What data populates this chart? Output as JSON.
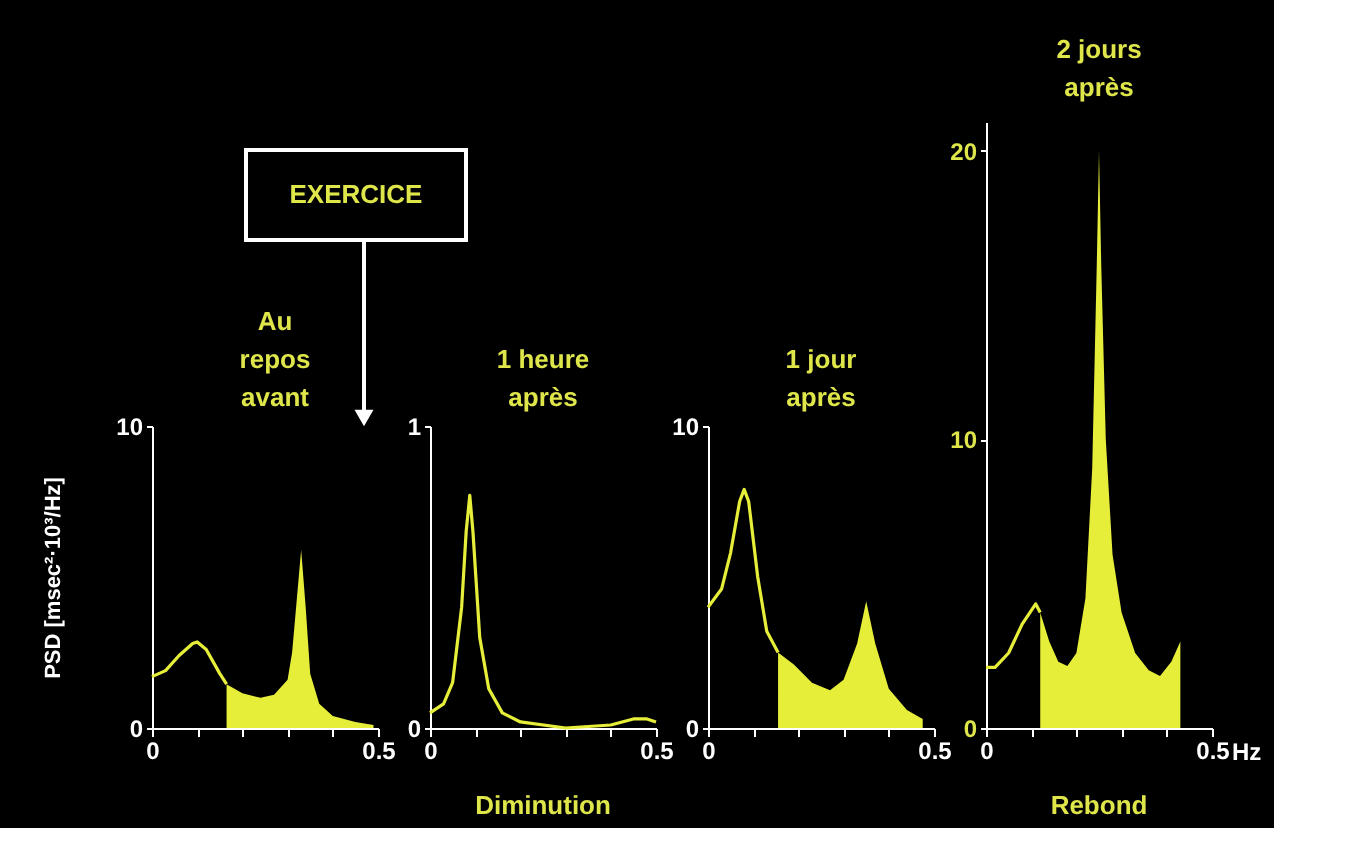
{
  "chart_data": [
    {
      "type": "line",
      "title": "Au repos avant",
      "ylabel": "PSD [msec²·10³/Hz]",
      "annotations": [
        "EXERCICE"
      ],
      "xlim": [
        0,
        0.5
      ],
      "xticks": [
        0,
        {
          "value": 0.1,
          "label": null
        },
        {
          "value": 0.2,
          "label": null
        },
        {
          "value": 0.3,
          "label": null
        },
        {
          "value": 0.4,
          "label": null
        },
        0.5
      ],
      "ylim": [
        0,
        10
      ],
      "yticks": [
        0,
        10
      ],
      "series": [
        {
          "type": "area",
          "color": "#e6ee3a",
          "x": [
            0.165,
            0.2,
            0.24,
            0.27,
            0.3,
            0.31,
            0.32,
            0.33,
            0.34,
            0.35,
            0.37,
            0.4,
            0.45,
            0.49
          ],
          "values": [
            1.45,
            1.15,
            1.0,
            1.1,
            1.6,
            2.5,
            4.2,
            5.9,
            4.0,
            1.8,
            0.8,
            0.4,
            0.2,
            0.1
          ]
        },
        {
          "color": "#e6ee3a",
          "x": [
            0,
            0.03,
            0.06,
            0.09,
            0.1,
            0.12,
            0.15,
            0.165
          ],
          "values": [
            1.7,
            1.9,
            2.4,
            2.8,
            2.85,
            2.6,
            1.8,
            1.45
          ]
        }
      ]
    },
    {
      "type": "line",
      "title": "1 heure après",
      "annotations": [
        "Diminution"
      ],
      "xlim": [
        0,
        0.5
      ],
      "xticks": [
        0,
        {
          "value": 0.1,
          "label": null
        },
        {
          "value": 0.2,
          "label": null
        },
        {
          "value": 0.3,
          "label": null
        },
        {
          "value": 0.4,
          "label": null
        },
        0.5
      ],
      "ylim": [
        0,
        1
      ],
      "yticks": [
        0,
        1
      ],
      "series": [
        {
          "color": "#e6ee3a",
          "x": [
            0,
            0.03,
            0.05,
            0.07,
            0.08,
            0.088,
            0.095,
            0.11,
            0.13,
            0.16,
            0.2,
            0.3,
            0.4,
            0.45,
            0.48,
            0.5
          ],
          "values": [
            0.05,
            0.08,
            0.15,
            0.4,
            0.65,
            0.77,
            0.65,
            0.3,
            0.13,
            0.05,
            0.02,
            0.0,
            0.01,
            0.03,
            0.03,
            0.02
          ]
        }
      ]
    },
    {
      "type": "line",
      "title": "1 jour après",
      "xlim": [
        0,
        0.5
      ],
      "xticks": [
        0,
        {
          "value": 0.1,
          "label": null
        },
        {
          "value": 0.2,
          "label": null
        },
        {
          "value": 0.3,
          "label": null
        },
        {
          "value": 0.4,
          "label": null
        },
        0.5
      ],
      "ylim": [
        0,
        10
      ],
      "yticks": [
        0,
        10
      ],
      "series": [
        {
          "type": "area",
          "color": "#e6ee3a",
          "x": [
            0.155,
            0.19,
            0.23,
            0.27,
            0.3,
            0.33,
            0.35,
            0.37,
            0.4,
            0.44,
            0.475
          ],
          "values": [
            2.5,
            2.1,
            1.5,
            1.25,
            1.6,
            2.8,
            4.2,
            2.8,
            1.3,
            0.6,
            0.3
          ]
        },
        {
          "color": "#e6ee3a",
          "x": [
            0,
            0.03,
            0.05,
            0.07,
            0.08,
            0.09,
            0.11,
            0.13,
            0.155
          ],
          "values": [
            4.0,
            4.6,
            5.8,
            7.5,
            7.9,
            7.5,
            5.0,
            3.2,
            2.5
          ]
        }
      ]
    },
    {
      "type": "line",
      "title": "2 jours après",
      "xlabel": "Hz",
      "annotations": [
        "Rebond"
      ],
      "xlim": [
        0,
        0.5
      ],
      "xticks": [
        0,
        {
          "value": 0.1,
          "label": null
        },
        {
          "value": 0.2,
          "label": null
        },
        {
          "value": 0.3,
          "label": null
        },
        {
          "value": 0.4,
          "label": null
        },
        0.5
      ],
      "ylim": [
        0,
        21
      ],
      "yticks": [
        0,
        10,
        20
      ],
      "series": [
        {
          "type": "area",
          "color": "#e6ee3a",
          "x": [
            0.12,
            0.14,
            0.16,
            0.18,
            0.2,
            0.22,
            0.235,
            0.245,
            0.25,
            0.255,
            0.265,
            0.28,
            0.3,
            0.33,
            0.36,
            0.385,
            0.41,
            0.43
          ],
          "values": [
            4.0,
            3.0,
            2.3,
            2.15,
            2.6,
            4.5,
            9.0,
            16,
            20,
            16,
            10,
            6,
            4.0,
            2.6,
            2.0,
            1.8,
            2.3,
            3.0
          ]
        },
        {
          "color": "#e6ee3a",
          "x": [
            0,
            0.02,
            0.05,
            0.08,
            0.11,
            0.12
          ],
          "values": [
            2.1,
            2.1,
            2.6,
            3.6,
            4.3,
            4.0
          ]
        }
      ]
    }
  ]
}
